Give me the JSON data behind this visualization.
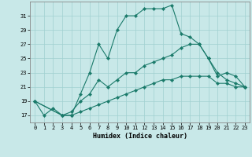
{
  "xlabel": "Humidex (Indice chaleur)",
  "background_color": "#c8e8e8",
  "grid_color": "#a0d0d0",
  "line_color": "#1a7a6a",
  "xlim": [
    -0.5,
    23.5
  ],
  "ylim": [
    16.0,
    33.0
  ],
  "xticks": [
    0,
    1,
    2,
    3,
    4,
    5,
    6,
    7,
    8,
    9,
    10,
    11,
    12,
    13,
    14,
    15,
    16,
    17,
    18,
    19,
    20,
    21,
    22,
    23
  ],
  "yticks": [
    17,
    19,
    21,
    23,
    25,
    27,
    29,
    31
  ],
  "line1_x": [
    0,
    1,
    2,
    3,
    4,
    5,
    6,
    7,
    8,
    9,
    10,
    11,
    12,
    13,
    14,
    15,
    16,
    17,
    18,
    19,
    20,
    21,
    22,
    23
  ],
  "line1_y": [
    19,
    17,
    18,
    17,
    17,
    20,
    23,
    27,
    25,
    29,
    31,
    31,
    32,
    32,
    32,
    32.5,
    28.5,
    28,
    27,
    25,
    23,
    22,
    21.5,
    21
  ],
  "line2_x": [
    0,
    3,
    4,
    5,
    6,
    7,
    8,
    9,
    10,
    11,
    12,
    13,
    14,
    15,
    16,
    17,
    18,
    19,
    20,
    21,
    22,
    23
  ],
  "line2_y": [
    19,
    17,
    17.5,
    19,
    20,
    22,
    21,
    22,
    23,
    23,
    24,
    24.5,
    25,
    25.5,
    26.5,
    27,
    27,
    25,
    22.5,
    23,
    22.5,
    21
  ],
  "line3_x": [
    0,
    3,
    4,
    5,
    6,
    7,
    8,
    9,
    10,
    11,
    12,
    13,
    14,
    15,
    16,
    17,
    18,
    19,
    20,
    21,
    22,
    23
  ],
  "line3_y": [
    19,
    17,
    17,
    17.5,
    18,
    18.5,
    19,
    19.5,
    20,
    20.5,
    21,
    21.5,
    22,
    22,
    22.5,
    22.5,
    22.5,
    22.5,
    21.5,
    21.5,
    21,
    21
  ]
}
